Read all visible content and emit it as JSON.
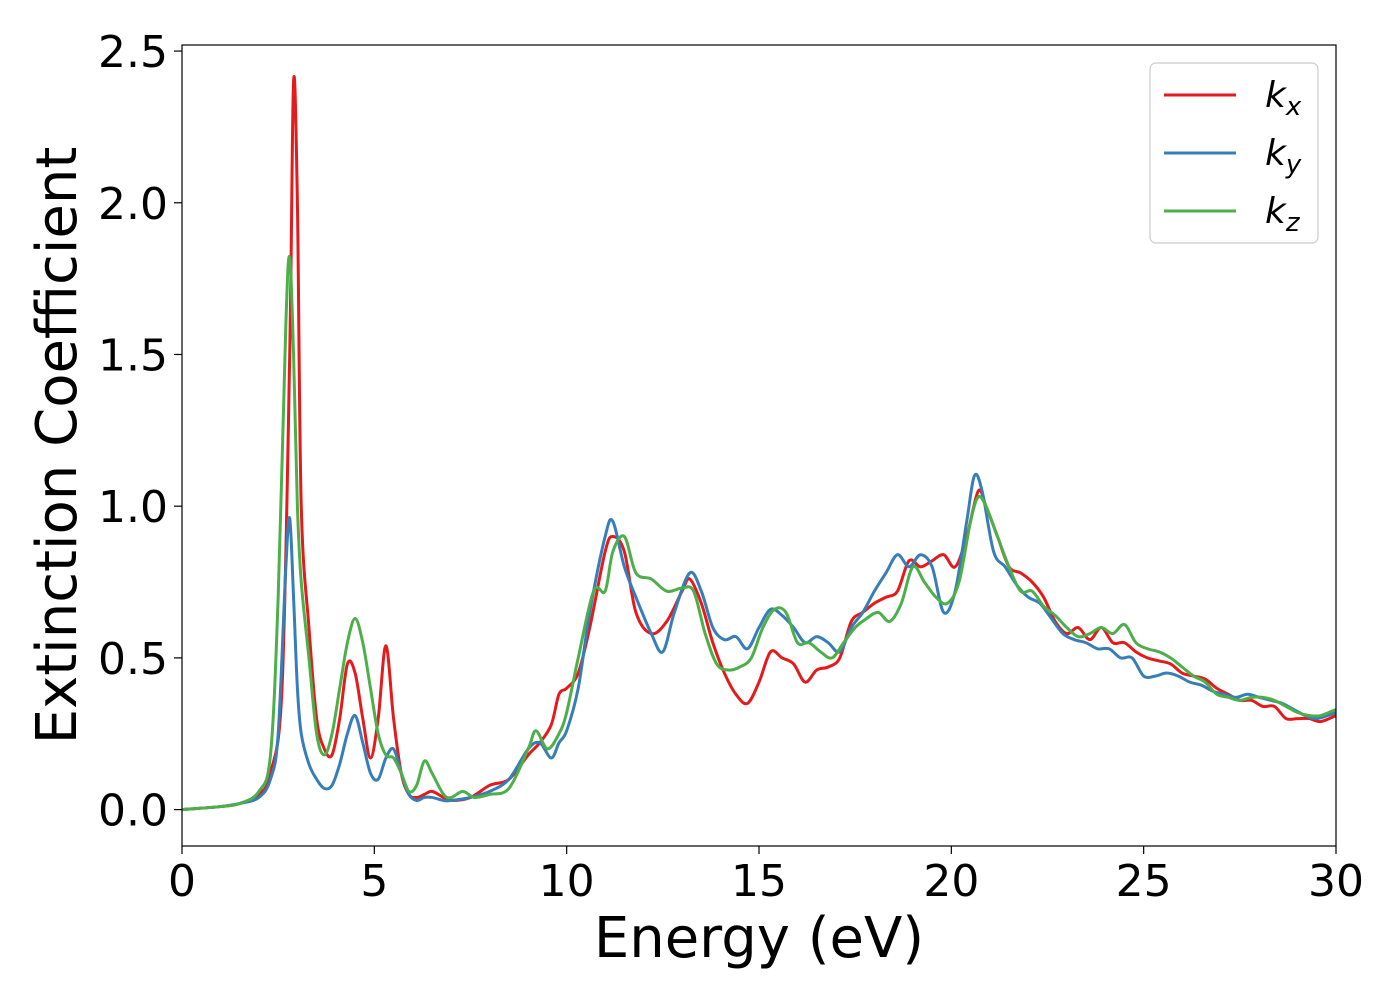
{
  "chart_data": {
    "type": "line",
    "xlabel": "Energy (eV)",
    "ylabel": "Extinction Coefficient",
    "xlim": [
      0,
      30
    ],
    "ylim": [
      -0.12,
      2.52
    ],
    "xticks": [
      0,
      5,
      10,
      15,
      20,
      25,
      30
    ],
    "xtick_labels": [
      "0",
      "5",
      "10",
      "15",
      "20",
      "25",
      "30"
    ],
    "yticks": [
      0.0,
      0.5,
      1.0,
      1.5,
      2.0,
      2.5
    ],
    "ytick_labels": [
      "0.0",
      "0.5",
      "1.0",
      "1.5",
      "2.0",
      "2.5"
    ],
    "grid": false,
    "legend_position": "top-right",
    "series": [
      {
        "name": "k",
        "subscript": "x",
        "color": "#e41a1c",
        "x": [
          0,
          1,
          1.5,
          2,
          2.3,
          2.6,
          2.8,
          2.9,
          3.0,
          3.1,
          3.3,
          3.5,
          3.7,
          3.9,
          4.1,
          4.3,
          4.5,
          4.7,
          4.9,
          5.1,
          5.3,
          5.5,
          5.7,
          5.9,
          6.1,
          6.3,
          6.5,
          6.8,
          7,
          7.5,
          8,
          8.5,
          9,
          9.3,
          9.6,
          9.8,
          10,
          10.3,
          10.6,
          11,
          11.2,
          11.5,
          11.8,
          12.2,
          12.6,
          13,
          13.2,
          13.5,
          13.8,
          14.1,
          14.4,
          14.7,
          15,
          15.3,
          15.6,
          15.9,
          16.2,
          16.5,
          16.8,
          17.1,
          17.4,
          17.7,
          18,
          18.3,
          18.6,
          18.9,
          19.2,
          19.5,
          19.8,
          20.1,
          20.4,
          20.7,
          20.9,
          21.2,
          21.5,
          21.8,
          22.1,
          22.4,
          22.7,
          23,
          23.3,
          23.6,
          23.9,
          24.2,
          24.5,
          24.8,
          25.1,
          25.4,
          25.7,
          26,
          26.3,
          26.6,
          26.9,
          27.2,
          27.5,
          27.8,
          28.1,
          28.4,
          28.7,
          29,
          29.3,
          29.6,
          30
        ],
        "y": [
          0,
          0.01,
          0.02,
          0.05,
          0.12,
          0.4,
          1.5,
          2.4,
          2.0,
          1.0,
          0.6,
          0.3,
          0.2,
          0.18,
          0.3,
          0.48,
          0.45,
          0.3,
          0.17,
          0.3,
          0.54,
          0.3,
          0.12,
          0.05,
          0.04,
          0.05,
          0.06,
          0.04,
          0.03,
          0.04,
          0.08,
          0.1,
          0.18,
          0.22,
          0.28,
          0.38,
          0.4,
          0.45,
          0.6,
          0.85,
          0.9,
          0.85,
          0.65,
          0.58,
          0.62,
          0.72,
          0.76,
          0.68,
          0.55,
          0.45,
          0.38,
          0.35,
          0.42,
          0.52,
          0.5,
          0.48,
          0.42,
          0.46,
          0.47,
          0.5,
          0.62,
          0.65,
          0.68,
          0.7,
          0.72,
          0.82,
          0.8,
          0.82,
          0.84,
          0.8,
          0.9,
          1.05,
          1.0,
          0.9,
          0.8,
          0.78,
          0.75,
          0.7,
          0.62,
          0.58,
          0.6,
          0.56,
          0.6,
          0.55,
          0.55,
          0.52,
          0.5,
          0.49,
          0.48,
          0.45,
          0.44,
          0.43,
          0.4,
          0.38,
          0.36,
          0.36,
          0.34,
          0.34,
          0.3,
          0.3,
          0.3,
          0.29,
          0.31
        ]
      },
      {
        "name": "k",
        "subscript": "y",
        "color": "#377eb8",
        "x": [
          0,
          1,
          1.5,
          2,
          2.3,
          2.5,
          2.7,
          2.8,
          2.9,
          3.0,
          3.1,
          3.3,
          3.5,
          3.7,
          3.9,
          4.1,
          4.3,
          4.5,
          4.7,
          4.9,
          5.1,
          5.3,
          5.5,
          5.7,
          5.9,
          6.1,
          6.3,
          6.5,
          6.8,
          7,
          7.5,
          8,
          8.5,
          9,
          9.3,
          9.6,
          9.8,
          10,
          10.3,
          10.6,
          11,
          11.2,
          11.5,
          11.8,
          12.2,
          12.5,
          12.8,
          13.2,
          13.5,
          13.8,
          14.1,
          14.4,
          14.7,
          15,
          15.3,
          15.6,
          15.9,
          16.2,
          16.5,
          16.8,
          17.1,
          17.4,
          17.7,
          18,
          18.3,
          18.6,
          18.9,
          19.2,
          19.5,
          19.8,
          20.1,
          20.4,
          20.6,
          20.8,
          21.1,
          21.4,
          21.7,
          22,
          22.3,
          22.6,
          22.9,
          23.2,
          23.5,
          23.8,
          24.1,
          24.4,
          24.7,
          25,
          25.3,
          25.6,
          25.9,
          26.2,
          26.5,
          26.8,
          27.1,
          27.4,
          27.7,
          28,
          28.3,
          28.6,
          28.9,
          29.2,
          29.5,
          30
        ],
        "y": [
          0,
          0.01,
          0.02,
          0.04,
          0.1,
          0.25,
          0.8,
          0.96,
          0.7,
          0.4,
          0.25,
          0.15,
          0.1,
          0.07,
          0.08,
          0.15,
          0.25,
          0.31,
          0.22,
          0.12,
          0.1,
          0.17,
          0.2,
          0.12,
          0.05,
          0.03,
          0.04,
          0.04,
          0.03,
          0.03,
          0.04,
          0.06,
          0.1,
          0.2,
          0.22,
          0.17,
          0.22,
          0.26,
          0.4,
          0.65,
          0.9,
          0.95,
          0.8,
          0.7,
          0.58,
          0.52,
          0.65,
          0.78,
          0.72,
          0.6,
          0.56,
          0.57,
          0.53,
          0.6,
          0.66,
          0.64,
          0.6,
          0.55,
          0.57,
          0.55,
          0.52,
          0.6,
          0.65,
          0.72,
          0.78,
          0.84,
          0.8,
          0.84,
          0.8,
          0.65,
          0.72,
          0.95,
          1.1,
          1.05,
          0.85,
          0.8,
          0.74,
          0.7,
          0.68,
          0.63,
          0.58,
          0.56,
          0.55,
          0.53,
          0.53,
          0.5,
          0.5,
          0.44,
          0.44,
          0.45,
          0.44,
          0.42,
          0.41,
          0.39,
          0.38,
          0.37,
          0.38,
          0.37,
          0.36,
          0.35,
          0.33,
          0.31,
          0.3,
          0.32
        ]
      },
      {
        "name": "k",
        "subscript": "z",
        "color": "#4daf4a",
        "x": [
          0,
          1,
          1.5,
          2,
          2.3,
          2.5,
          2.7,
          2.8,
          2.9,
          3.0,
          3.1,
          3.3,
          3.5,
          3.7,
          3.9,
          4.1,
          4.3,
          4.5,
          4.7,
          4.9,
          5.1,
          5.3,
          5.5,
          5.7,
          5.9,
          6.1,
          6.3,
          6.5,
          6.8,
          7,
          7.3,
          7.6,
          8,
          8.5,
          9,
          9.2,
          9.5,
          9.8,
          10,
          10.3,
          10.7,
          11,
          11.2,
          11.5,
          11.8,
          12.2,
          12.6,
          13,
          13.3,
          13.6,
          13.9,
          14.2,
          14.5,
          14.8,
          15.1,
          15.4,
          15.7,
          16,
          16.3,
          16.6,
          16.9,
          17.2,
          17.5,
          17.8,
          18.1,
          18.4,
          18.7,
          19,
          19.3,
          19.6,
          19.9,
          20.2,
          20.5,
          20.7,
          20.9,
          21.2,
          21.5,
          21.8,
          22.1,
          22.4,
          22.7,
          23,
          23.3,
          23.6,
          23.9,
          24.2,
          24.5,
          24.8,
          25.1,
          25.4,
          25.7,
          26,
          26.3,
          26.6,
          26.9,
          27.2,
          27.5,
          27.8,
          28.1,
          28.4,
          28.7,
          29,
          29.3,
          29.6,
          30
        ],
        "y": [
          0,
          0.01,
          0.02,
          0.06,
          0.18,
          0.7,
          1.6,
          1.82,
          1.5,
          1.0,
          0.75,
          0.5,
          0.25,
          0.18,
          0.25,
          0.4,
          0.55,
          0.63,
          0.55,
          0.4,
          0.25,
          0.18,
          0.17,
          0.12,
          0.06,
          0.08,
          0.16,
          0.12,
          0.05,
          0.04,
          0.06,
          0.04,
          0.05,
          0.07,
          0.2,
          0.26,
          0.2,
          0.25,
          0.32,
          0.5,
          0.72,
          0.72,
          0.85,
          0.9,
          0.78,
          0.76,
          0.72,
          0.73,
          0.72,
          0.58,
          0.48,
          0.46,
          0.47,
          0.5,
          0.6,
          0.66,
          0.65,
          0.55,
          0.55,
          0.52,
          0.5,
          0.55,
          0.6,
          0.63,
          0.65,
          0.62,
          0.68,
          0.8,
          0.75,
          0.7,
          0.68,
          0.75,
          0.95,
          1.03,
          1.0,
          0.9,
          0.8,
          0.72,
          0.72,
          0.67,
          0.64,
          0.6,
          0.57,
          0.58,
          0.6,
          0.58,
          0.61,
          0.55,
          0.53,
          0.52,
          0.5,
          0.47,
          0.44,
          0.42,
          0.38,
          0.37,
          0.36,
          0.37,
          0.37,
          0.36,
          0.34,
          0.32,
          0.31,
          0.31,
          0.33
        ]
      }
    ]
  }
}
